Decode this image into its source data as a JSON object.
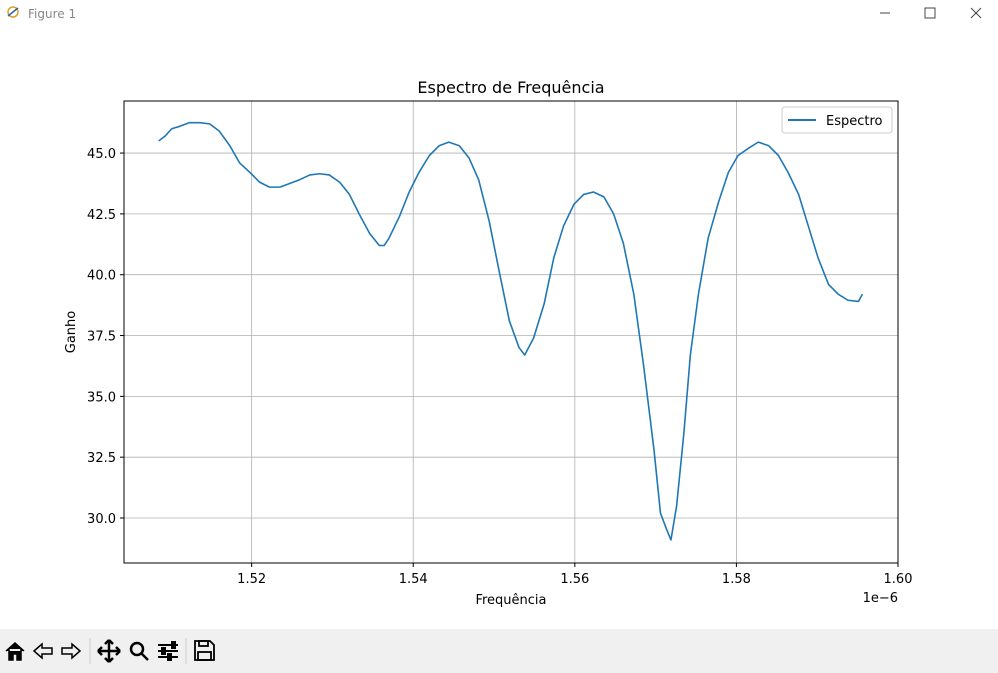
{
  "window": {
    "title": "Figure 1"
  },
  "chart_data": {
    "type": "line",
    "title": "Espectro de Frequência",
    "x_label": "Frequência",
    "y_label": "Ganho",
    "x_offset_label": "1e−6",
    "xlim": [
      1.5042,
      1.6
    ],
    "ylim": [
      28.15,
      47.14
    ],
    "xticks": [
      1.52,
      1.54,
      1.56,
      1.58,
      {
        "value": 1.6,
        "label": "1.60"
      }
    ],
    "yticks": [
      {
        "value": 30,
        "label": "30.0"
      },
      32.5,
      {
        "value": 35,
        "label": "35.0"
      },
      37.5,
      {
        "value": 40,
        "label": "40.0"
      },
      42.5,
      {
        "value": 45,
        "label": "45.0"
      }
    ],
    "grid": true,
    "legend": "upper right",
    "series": [
      {
        "name": "Espectro",
        "color": "#1f77b4",
        "x": [
          1.5085,
          1.5093,
          1.5101,
          1.5111,
          1.5123,
          1.5136,
          1.5148,
          1.516,
          1.5173,
          1.5185,
          1.5198,
          1.521,
          1.5222,
          1.5235,
          1.5247,
          1.5259,
          1.5272,
          1.5284,
          1.5296,
          1.5309,
          1.5321,
          1.5333,
          1.5346,
          1.5358,
          1.5364,
          1.537,
          1.5383,
          1.5395,
          1.5407,
          1.542,
          1.5432,
          1.5444,
          1.5457,
          1.5469,
          1.5481,
          1.5494,
          1.5506,
          1.5519,
          1.5531,
          1.5538,
          1.5549,
          1.5562,
          1.5574,
          1.5586,
          1.5599,
          1.5611,
          1.5623,
          1.5636,
          1.5648,
          1.566,
          1.5673,
          1.5685,
          1.5698,
          1.5706,
          1.5714,
          1.5719,
          1.5726,
          1.5735,
          1.5743,
          1.5753,
          1.5765,
          1.5778,
          1.579,
          1.5802,
          1.5815,
          1.5827,
          1.584,
          1.5852,
          1.5864,
          1.5877,
          1.5889,
          1.5901,
          1.5914,
          1.5926,
          1.5938,
          1.5951,
          1.5956
        ],
        "values": [
          45.5,
          45.7,
          46.0,
          46.1,
          46.25,
          46.25,
          46.2,
          45.9,
          45.3,
          44.6,
          44.2,
          43.8,
          43.6,
          43.6,
          43.75,
          43.9,
          44.1,
          44.15,
          44.1,
          43.8,
          43.3,
          42.5,
          41.7,
          41.2,
          41.2,
          41.5,
          42.4,
          43.4,
          44.2,
          44.9,
          45.3,
          45.45,
          45.3,
          44.8,
          43.9,
          42.2,
          40.2,
          38.1,
          37.0,
          36.7,
          37.4,
          38.8,
          40.7,
          42.0,
          42.9,
          43.3,
          43.4,
          43.2,
          42.5,
          41.3,
          39.2,
          36.3,
          32.8,
          30.2,
          29.5,
          29.1,
          30.5,
          33.5,
          36.7,
          39.2,
          41.5,
          43.0,
          44.2,
          44.9,
          45.2,
          45.45,
          45.3,
          44.9,
          44.2,
          43.3,
          42.0,
          40.7,
          39.6,
          39.2,
          38.95,
          38.9,
          39.2
        ]
      }
    ]
  }
}
